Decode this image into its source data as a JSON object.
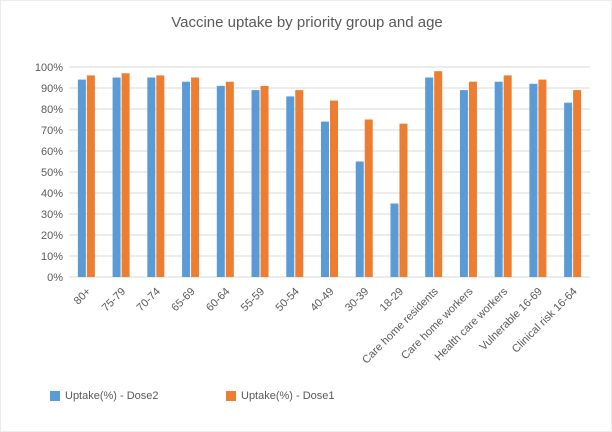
{
  "title": "Vaccine uptake by priority group and age",
  "colors": {
    "dose2_blue": "#5B9BD5",
    "dose1_orange": "#ED7D31",
    "gridline": "#D9D9D9",
    "axis_text": "#595959",
    "title_text": "#595959",
    "background": "#FFFFFF"
  },
  "legend": {
    "entries": [
      {
        "label": "Uptake(%) - Dose2",
        "color": "#5B9BD5"
      },
      {
        "label": "Uptake(%) - Dose1",
        "color": "#ED7D31"
      }
    ]
  },
  "chart_data": {
    "type": "bar",
    "title": "Vaccine uptake by priority group and age",
    "xlabel": "",
    "ylabel": "",
    "categories": [
      "80+",
      "75-79",
      "70-74",
      "65-69",
      "60-64",
      "55-59",
      "50-54",
      "40-49",
      "30-39",
      "18-29",
      "Care home residents",
      "Care home workers",
      "Health care workers",
      "Vulnerable 16-69",
      "Clinical risk 16-64"
    ],
    "series": [
      {
        "name": "Uptake(%) - Dose2",
        "color": "#5B9BD5",
        "values": [
          94,
          95,
          95,
          93,
          91,
          89,
          86,
          74,
          55,
          35,
          95,
          89,
          93,
          92,
          83
        ]
      },
      {
        "name": "Uptake(%) - Dose1",
        "color": "#ED7D31",
        "values": [
          96,
          97,
          96,
          95,
          93,
          91,
          89,
          84,
          75,
          73,
          98,
          93,
          96,
          94,
          89
        ]
      }
    ],
    "ylim": [
      0,
      100
    ],
    "ytick_step": 10,
    "ytick_labels": [
      "0%",
      "10%",
      "20%",
      "30%",
      "40%",
      "50%",
      "60%",
      "70%",
      "80%",
      "90%",
      "100%"
    ],
    "grid": true,
    "legend_position": "bottom-left"
  }
}
